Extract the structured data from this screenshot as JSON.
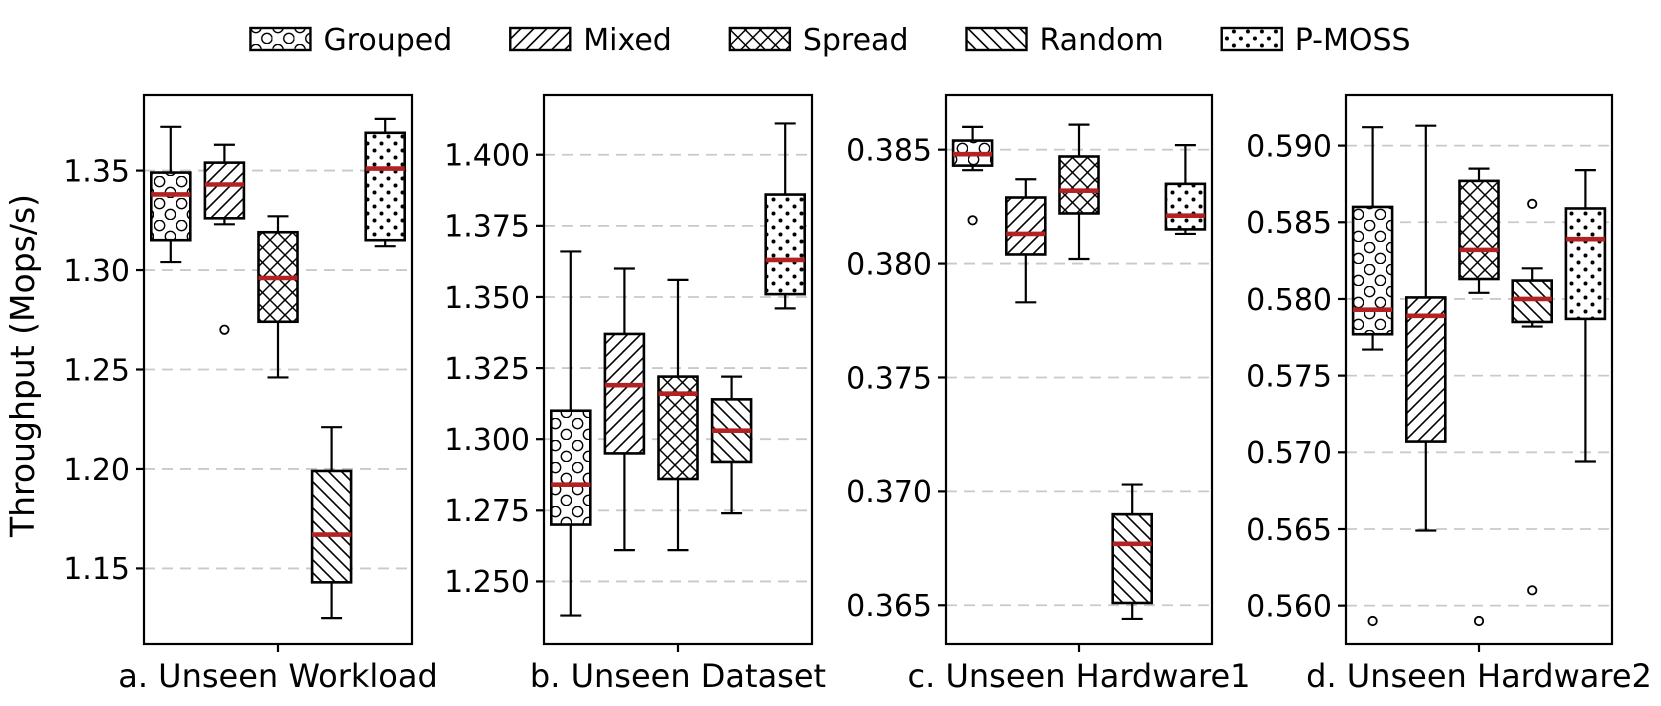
{
  "figure": {
    "background": "#ffffff",
    "text_color": "#000000"
  },
  "chart_data": {
    "type": "boxplot",
    "ylabel": "Throughput (Mops/s)",
    "grid": "horizontal-dashed",
    "legend_position": "top-center",
    "median_color": "#b22222",
    "box_edge_color": "#000000",
    "gridline_color": "#c9c9c9",
    "flier_color": "#000000",
    "legend": [
      {
        "label": "Grouped",
        "hatch": "o",
        "hatch_name": "circles"
      },
      {
        "label": "Mixed",
        "hatch": "/",
        "hatch_name": "forward-diagonal"
      },
      {
        "label": "Spread",
        "hatch": "x",
        "hatch_name": "cross-diagonal"
      },
      {
        "label": "Random",
        "hatch": "\\",
        "hatch_name": "back-diagonal"
      },
      {
        "label": "P-MOSS",
        "hatch": ".",
        "hatch_name": "dots"
      }
    ],
    "subplots": [
      {
        "xlabel": "a. Unseen Workload",
        "ylim": [
          1.112,
          1.388
        ],
        "yticks": [
          1.15,
          1.2,
          1.25,
          1.3,
          1.35
        ],
        "ytick_labels": [
          "1.15",
          "1.20",
          "1.25",
          "1.30",
          "1.35"
        ],
        "boxes": [
          {
            "series": "Grouped",
            "whislo": 1.304,
            "q1": 1.315,
            "med": 1.338,
            "q3": 1.349,
            "whishi": 1.372,
            "fliers": []
          },
          {
            "series": "Mixed",
            "whislo": 1.323,
            "q1": 1.326,
            "med": 1.343,
            "q3": 1.354,
            "whishi": 1.363,
            "fliers": [
              1.27
            ]
          },
          {
            "series": "Spread",
            "whislo": 1.246,
            "q1": 1.274,
            "med": 1.296,
            "q3": 1.319,
            "whishi": 1.327,
            "fliers": []
          },
          {
            "series": "Random",
            "whislo": 1.125,
            "q1": 1.143,
            "med": 1.167,
            "q3": 1.199,
            "whishi": 1.221,
            "fliers": []
          },
          {
            "series": "P-MOSS",
            "whislo": 1.312,
            "q1": 1.315,
            "med": 1.351,
            "q3": 1.369,
            "whishi": 1.376,
            "fliers": []
          }
        ]
      },
      {
        "xlabel": "b. Unseen Dataset",
        "ylim": [
          1.228,
          1.421
        ],
        "yticks": [
          1.25,
          1.275,
          1.3,
          1.325,
          1.35,
          1.375,
          1.4
        ],
        "ytick_labels": [
          "1.250",
          "1.275",
          "1.300",
          "1.325",
          "1.350",
          "1.375",
          "1.400"
        ],
        "boxes": [
          {
            "series": "Grouped",
            "whislo": 1.238,
            "q1": 1.27,
            "med": 1.284,
            "q3": 1.31,
            "whishi": 1.366,
            "fliers": []
          },
          {
            "series": "Mixed",
            "whislo": 1.261,
            "q1": 1.295,
            "med": 1.319,
            "q3": 1.337,
            "whishi": 1.36,
            "fliers": []
          },
          {
            "series": "Spread",
            "whislo": 1.261,
            "q1": 1.286,
            "med": 1.316,
            "q3": 1.322,
            "whishi": 1.356,
            "fliers": []
          },
          {
            "series": "Random",
            "whislo": 1.274,
            "q1": 1.292,
            "med": 1.303,
            "q3": 1.314,
            "whishi": 1.322,
            "fliers": []
          },
          {
            "series": "P-MOSS",
            "whislo": 1.346,
            "q1": 1.351,
            "med": 1.363,
            "q3": 1.386,
            "whishi": 1.411,
            "fliers": []
          }
        ]
      },
      {
        "xlabel": "c. Unseen Hardware1",
        "ylim": [
          0.3633,
          0.3874
        ],
        "yticks": [
          0.365,
          0.37,
          0.375,
          0.38,
          0.385
        ],
        "ytick_labels": [
          "0.365",
          "0.370",
          "0.375",
          "0.380",
          "0.385"
        ],
        "boxes": [
          {
            "series": "Grouped",
            "whislo": 0.3841,
            "q1": 0.3843,
            "med": 0.3848,
            "q3": 0.3854,
            "whishi": 0.386,
            "fliers": [
              0.3819
            ]
          },
          {
            "series": "Mixed",
            "whislo": 0.3783,
            "q1": 0.3804,
            "med": 0.3813,
            "q3": 0.3829,
            "whishi": 0.3837,
            "fliers": []
          },
          {
            "series": "Spread",
            "whislo": 0.3802,
            "q1": 0.3822,
            "med": 0.3832,
            "q3": 0.3847,
            "whishi": 0.3861,
            "fliers": []
          },
          {
            "series": "Random",
            "whislo": 0.3644,
            "q1": 0.3651,
            "med": 0.3677,
            "q3": 0.369,
            "whishi": 0.3703,
            "fliers": []
          },
          {
            "series": "P-MOSS",
            "whislo": 0.3813,
            "q1": 0.3815,
            "med": 0.3821,
            "q3": 0.3835,
            "whishi": 0.3852,
            "fliers": []
          }
        ]
      },
      {
        "xlabel": "d. Unseen Hardware2",
        "ylim": [
          0.5575,
          0.5933
        ],
        "yticks": [
          0.56,
          0.565,
          0.57,
          0.575,
          0.58,
          0.585,
          0.59
        ],
        "ytick_labels": [
          "0.560",
          "0.565",
          "0.570",
          "0.575",
          "0.580",
          "0.585",
          "0.590"
        ],
        "boxes": [
          {
            "series": "Grouped",
            "whislo": 0.5767,
            "q1": 0.5777,
            "med": 0.5793,
            "q3": 0.586,
            "whishi": 0.5912,
            "fliers": [
              0.559
            ]
          },
          {
            "series": "Mixed",
            "whislo": 0.5649,
            "q1": 0.5707,
            "med": 0.5789,
            "q3": 0.5801,
            "whishi": 0.5913,
            "fliers": []
          },
          {
            "series": "Spread",
            "whislo": 0.5804,
            "q1": 0.5813,
            "med": 0.5832,
            "q3": 0.5877,
            "whishi": 0.5885,
            "fliers": [
              0.559
            ]
          },
          {
            "series": "Random",
            "whislo": 0.5782,
            "q1": 0.5785,
            "med": 0.58,
            "q3": 0.5812,
            "whishi": 0.582,
            "fliers": [
              0.5862,
              0.561
            ]
          },
          {
            "series": "P-MOSS",
            "whislo": 0.5694,
            "q1": 0.5787,
            "med": 0.5839,
            "q3": 0.5859,
            "whishi": 0.5884,
            "fliers": []
          }
        ]
      }
    ]
  }
}
